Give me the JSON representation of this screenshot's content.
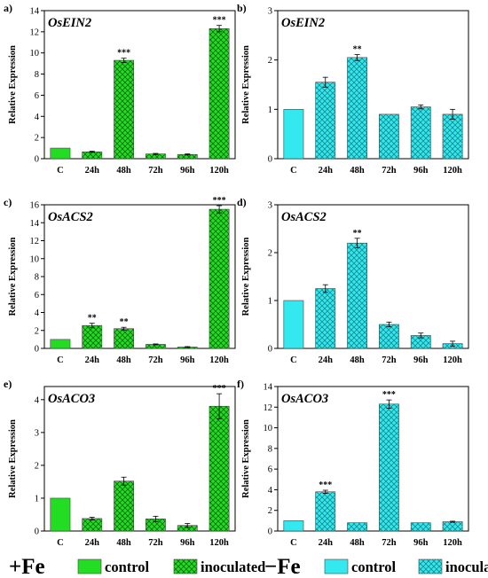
{
  "chart_data": [
    {
      "type": "bar",
      "panel_label": "a)",
      "title": "OsEIN2",
      "ylabel": "Relative Expression",
      "xlabel": "",
      "ylim": [
        0,
        14
      ],
      "yticks": [
        0,
        2,
        4,
        6,
        8,
        10,
        12,
        14
      ],
      "categories": [
        "C",
        "24h",
        "48h",
        "72h",
        "96h",
        "120h"
      ],
      "values": [
        1.0,
        0.65,
        9.3,
        0.45,
        0.4,
        12.3
      ],
      "errors": [
        0,
        0.05,
        0.2,
        0.05,
        0.05,
        0.3
      ],
      "significance": [
        "",
        "",
        "***",
        "",
        "",
        "***"
      ],
      "condition": "+Fe",
      "color": "#22dd22"
    },
    {
      "type": "bar",
      "panel_label": "b)",
      "title": "OsEIN2",
      "ylabel": "Relative Expression",
      "xlabel": "",
      "ylim": [
        0,
        3
      ],
      "yticks": [
        0,
        1,
        2,
        3
      ],
      "categories": [
        "C",
        "24h",
        "48h",
        "72h",
        "96h",
        "120h"
      ],
      "values": [
        1.0,
        1.55,
        2.05,
        0.9,
        1.05,
        0.9
      ],
      "errors": [
        0,
        0.1,
        0.06,
        0,
        0.04,
        0.1
      ],
      "significance": [
        "",
        "",
        "**",
        "",
        "",
        ""
      ],
      "condition": "-Fe",
      "color": "#33e8ee"
    },
    {
      "type": "bar",
      "panel_label": "c)",
      "title": "OsACS2",
      "ylabel": "Relative Expression",
      "xlabel": "",
      "ylim": [
        0,
        16
      ],
      "yticks": [
        0,
        2,
        4,
        6,
        8,
        10,
        12,
        14,
        16
      ],
      "categories": [
        "C",
        "24h",
        "48h",
        "72h",
        "96h",
        "120h"
      ],
      "values": [
        1.0,
        2.55,
        2.2,
        0.45,
        0.15,
        15.5
      ],
      "errors": [
        0,
        0.25,
        0.15,
        0.05,
        0.05,
        0.4
      ],
      "significance": [
        "",
        "**",
        "**",
        "",
        "",
        "***"
      ],
      "condition": "+Fe",
      "color": "#22dd22"
    },
    {
      "type": "bar",
      "panel_label": "d)",
      "title": "OsACS2",
      "ylabel": "Relative Expression",
      "xlabel": "",
      "ylim": [
        0,
        3
      ],
      "yticks": [
        0,
        1,
        2,
        3
      ],
      "categories": [
        "C",
        "24h",
        "48h",
        "72h",
        "96h",
        "120h"
      ],
      "values": [
        1.0,
        1.25,
        2.2,
        0.5,
        0.27,
        0.1
      ],
      "errors": [
        0,
        0.08,
        0.1,
        0.05,
        0.05,
        0.05
      ],
      "significance": [
        "",
        "",
        "**",
        "",
        "",
        ""
      ],
      "condition": "-Fe",
      "color": "#33e8ee"
    },
    {
      "type": "bar",
      "panel_label": "e)",
      "title": "OsACO3",
      "ylabel": "Relative Expression",
      "xlabel": "",
      "ylim": [
        0,
        4.4
      ],
      "yticks": [
        0,
        1,
        2,
        3,
        4
      ],
      "categories": [
        "C",
        "24h",
        "48h",
        "72h",
        "96h",
        "120h"
      ],
      "values": [
        1.0,
        0.38,
        1.52,
        0.37,
        0.17,
        3.8
      ],
      "errors": [
        0,
        0.04,
        0.12,
        0.08,
        0.06,
        0.38
      ],
      "significance": [
        "",
        "",
        "",
        "",
        "",
        "***"
      ],
      "condition": "+Fe",
      "color": "#22dd22"
    },
    {
      "type": "bar",
      "panel_label": "f)",
      "title": "OsACO3",
      "ylabel": "Relative Expression",
      "xlabel": "",
      "ylim": [
        0,
        14
      ],
      "yticks": [
        0,
        2,
        4,
        6,
        8,
        10,
        12,
        14
      ],
      "categories": [
        "C",
        "24h",
        "48h",
        "72h",
        "96h",
        "120h"
      ],
      "values": [
        1.0,
        3.8,
        0.8,
        12.3,
        0.8,
        0.9
      ],
      "errors": [
        0,
        0.15,
        0,
        0.4,
        0,
        0.05
      ],
      "significance": [
        "",
        "***",
        "",
        "***",
        "",
        ""
      ],
      "condition": "-Fe",
      "color": "#33e8ee"
    }
  ],
  "legend": [
    {
      "condition": "+Fe",
      "color": "#22dd22",
      "items": [
        "control",
        "inoculated"
      ]
    },
    {
      "condition": "−Fe",
      "color": "#33e8ee",
      "items": [
        "control",
        "inoculated"
      ]
    }
  ]
}
